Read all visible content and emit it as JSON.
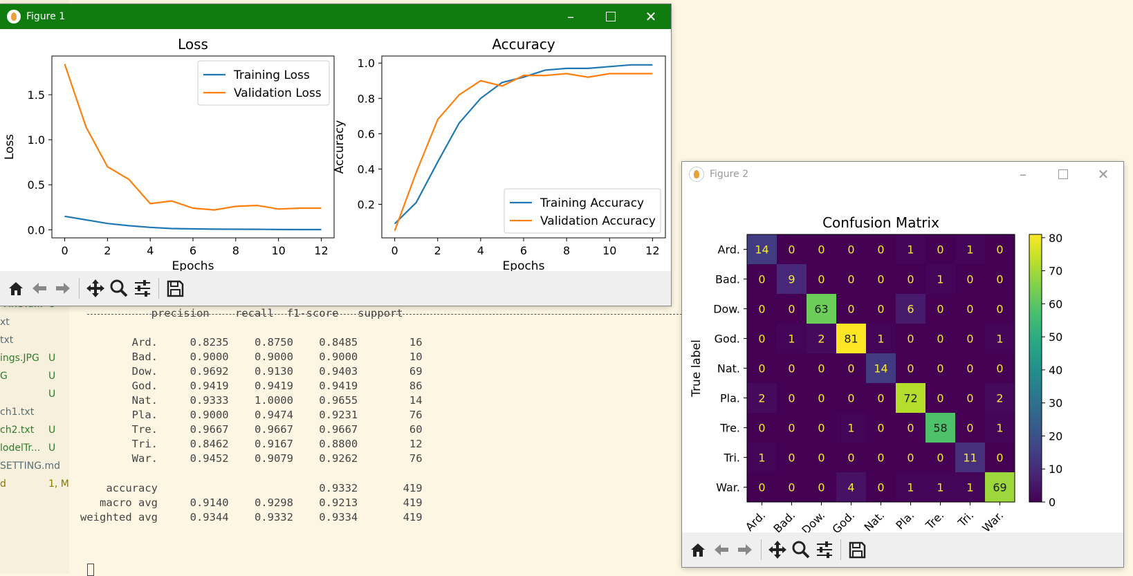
{
  "explorer": {
    "items": [
      {
        "name": "-FineTu...",
        "status": "U",
        "style": "green"
      },
      {
        "name": "xt",
        "status": "",
        "style": "mod"
      },
      {
        "name": "txt",
        "status": "",
        "style": "mod"
      },
      {
        "name": "ings.JPG",
        "status": "U",
        "style": "green"
      },
      {
        "name": "G",
        "status": "U",
        "style": "green"
      },
      {
        "name": "",
        "status": "U",
        "style": "green"
      },
      {
        "name": "ch1.txt",
        "status": "",
        "style": "mod"
      },
      {
        "name": "ch2.txt",
        "status": "U",
        "style": "green"
      },
      {
        "name": "lodelTr...",
        "status": "U",
        "style": "green"
      },
      {
        "name": "SETTING.md",
        "status": "",
        "style": "mod"
      },
      {
        "name": "d",
        "status": "1, M",
        "style": "olive"
      }
    ]
  },
  "report": {
    "header": "           precision    recall  f1-score   support",
    "rows": [
      "        Ard.     0.8235    0.8750    0.8485        16",
      "        Bad.     0.9000    0.9000    0.9000        10",
      "        Dow.     0.9692    0.9130    0.9403        69",
      "        God.     0.9419    0.9419    0.9419        86",
      "        Nat.     0.9333    1.0000    0.9655        14",
      "        Pla.     0.9000    0.9474    0.9231        76",
      "        Tre.     0.9667    0.9667    0.9667        60",
      "        Tri.     0.8462    0.9167    0.8800        12",
      "        War.     0.9452    0.9079    0.9262        76"
    ],
    "summary": [
      "    accuracy                         0.9332       419",
      "   macro avg     0.9140    0.9298    0.9213       419",
      "weighted avg     0.9344    0.9332    0.9334       419"
    ]
  },
  "figure1": {
    "title": "Figure 1",
    "titlebar_color": "#107c10",
    "loss_chart": {
      "type": "line",
      "title": "Loss",
      "xlabel": "Epochs",
      "ylabel": "Loss",
      "xlim": [
        -0.6,
        12.6
      ],
      "ylim": [
        -0.09,
        1.93
      ],
      "x_ticks": [
        0,
        2,
        4,
        6,
        8,
        10,
        12
      ],
      "y_ticks": [
        0.0,
        0.5,
        1.0,
        1.5
      ],
      "y_tick_labels": [
        "0.0",
        "0.5",
        "1.0",
        "1.5"
      ],
      "legend": "top-right",
      "x": [
        0,
        1,
        2,
        3,
        4,
        5,
        6,
        7,
        8,
        9,
        10,
        11,
        12
      ],
      "series": [
        {
          "name": "Training Loss",
          "color": "#1f77b4",
          "values": [
            0.15,
            0.11,
            0.07,
            0.045,
            0.027,
            0.014,
            0.01,
            0.007,
            0.006,
            0.005,
            0.003,
            0.002,
            0.002
          ]
        },
        {
          "name": "Validation Loss",
          "color": "#ff7f0e",
          "values": [
            1.84,
            1.14,
            0.7,
            0.56,
            0.29,
            0.32,
            0.24,
            0.22,
            0.26,
            0.27,
            0.23,
            0.24,
            0.24
          ]
        }
      ]
    },
    "acc_chart": {
      "type": "line",
      "title": "Accuracy",
      "xlabel": "Epochs",
      "ylabel": "Accuracy",
      "xlim": [
        -0.6,
        12.6
      ],
      "ylim": [
        0.01,
        1.04
      ],
      "x_ticks": [
        0,
        2,
        4,
        6,
        8,
        10,
        12
      ],
      "y_ticks": [
        0.2,
        0.4,
        0.6,
        0.8,
        1.0
      ],
      "y_tick_labels": [
        "0.2",
        "0.4",
        "0.6",
        "0.8",
        "1.0"
      ],
      "legend": "bottom-right",
      "x": [
        0,
        1,
        2,
        3,
        4,
        5,
        6,
        7,
        8,
        9,
        10,
        11,
        12
      ],
      "series": [
        {
          "name": "Training Accuracy",
          "color": "#1f77b4",
          "values": [
            0.09,
            0.21,
            0.44,
            0.66,
            0.8,
            0.89,
            0.92,
            0.96,
            0.97,
            0.97,
            0.98,
            0.99,
            0.99
          ]
        },
        {
          "name": "Validation Accuracy",
          "color": "#ff7f0e",
          "values": [
            0.05,
            0.38,
            0.68,
            0.82,
            0.9,
            0.87,
            0.93,
            0.93,
            0.94,
            0.92,
            0.94,
            0.94,
            0.94
          ]
        }
      ]
    }
  },
  "figure2": {
    "title": "Figure 2",
    "chart_data": {
      "type": "heatmap",
      "title": "Confusion Matrix",
      "ylabel": "True label",
      "xlabel": "",
      "labels": [
        "Ard.",
        "Bad.",
        "Dow.",
        "God.",
        "Nat.",
        "Pla.",
        "Tre.",
        "Tri.",
        "War."
      ],
      "matrix": [
        [
          14,
          0,
          0,
          0,
          0,
          1,
          0,
          1,
          0
        ],
        [
          0,
          9,
          0,
          0,
          0,
          0,
          1,
          0,
          0
        ],
        [
          0,
          0,
          63,
          0,
          0,
          6,
          0,
          0,
          0
        ],
        [
          0,
          1,
          2,
          81,
          1,
          0,
          0,
          0,
          1
        ],
        [
          0,
          0,
          0,
          0,
          14,
          0,
          0,
          0,
          0
        ],
        [
          2,
          0,
          0,
          0,
          0,
          72,
          0,
          0,
          2
        ],
        [
          0,
          0,
          0,
          1,
          0,
          0,
          58,
          0,
          1
        ],
        [
          1,
          0,
          0,
          0,
          0,
          0,
          0,
          11,
          0
        ],
        [
          0,
          0,
          0,
          4,
          0,
          1,
          1,
          1,
          69
        ]
      ],
      "colorbar_ticks": [
        0,
        10,
        20,
        30,
        40,
        50,
        60,
        70,
        80
      ],
      "vmin": 0,
      "vmax": 81
    }
  }
}
